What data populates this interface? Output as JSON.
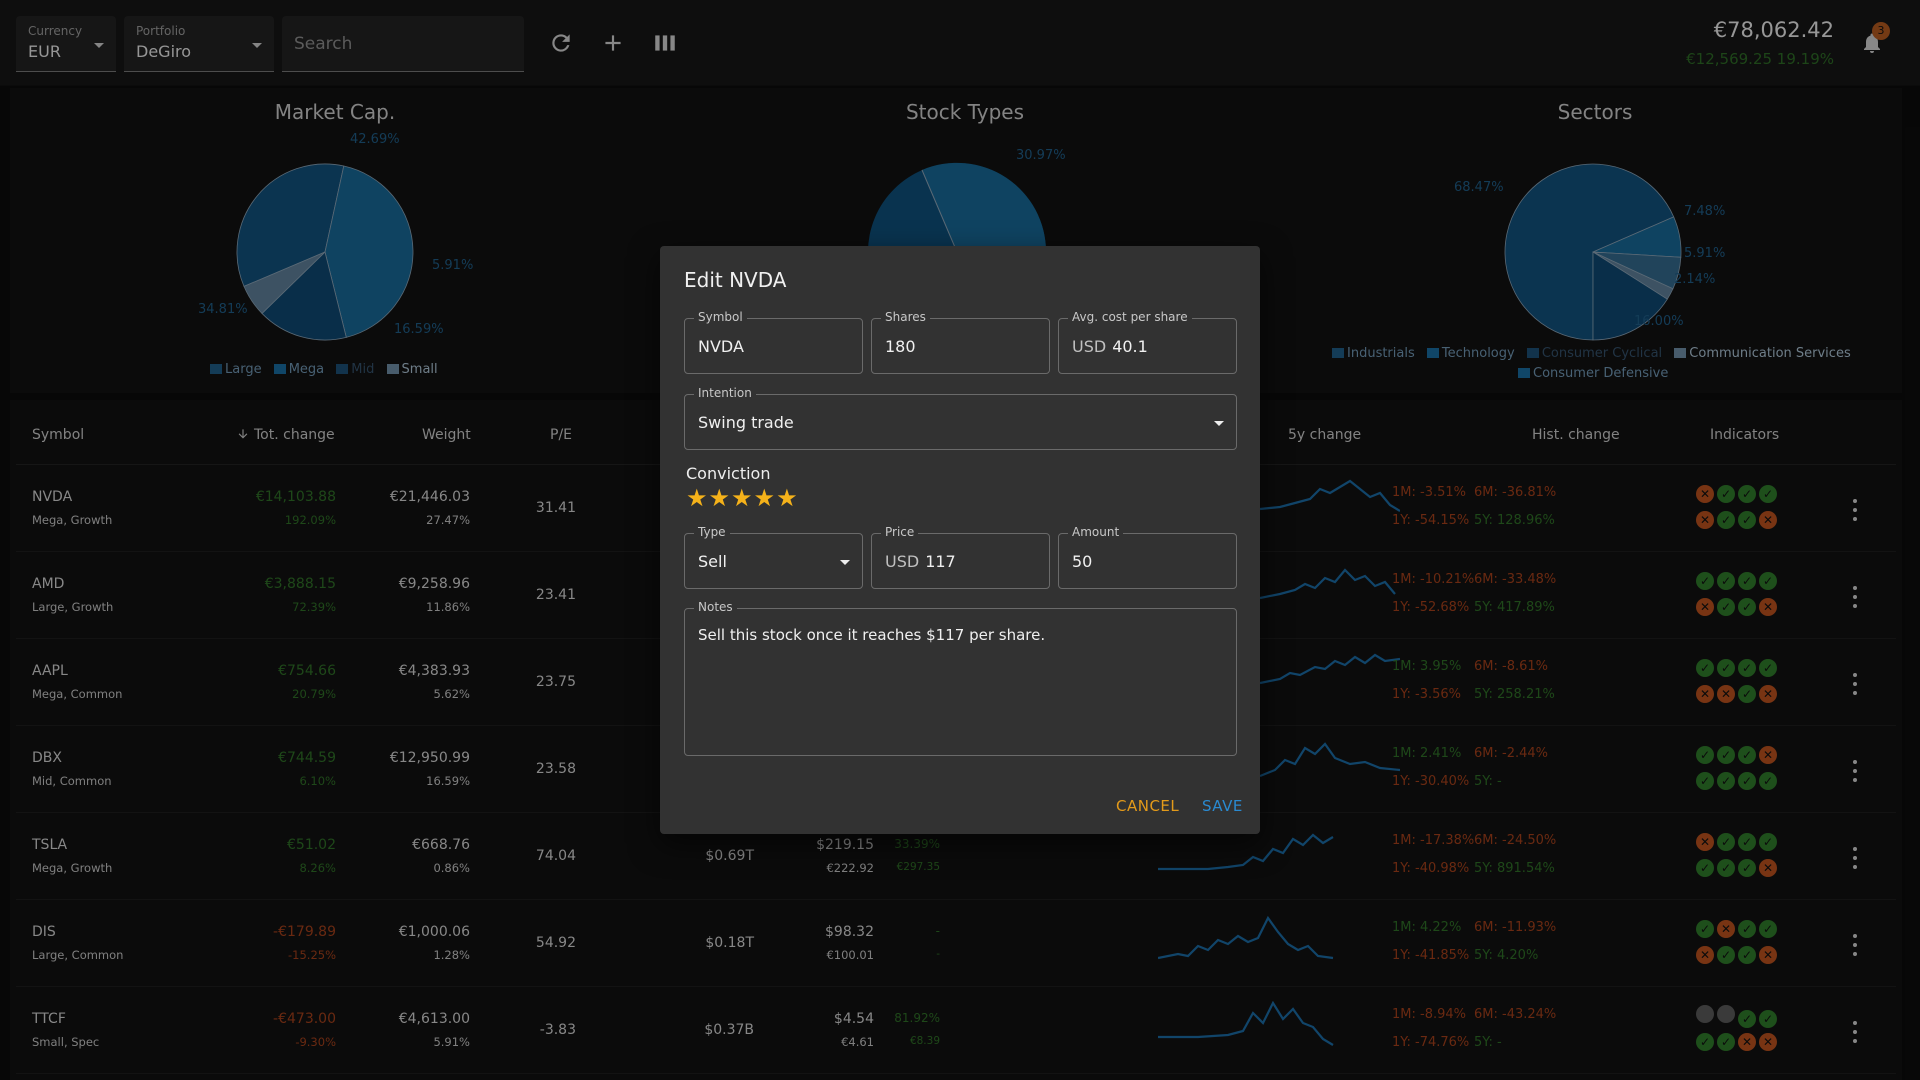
{
  "toolbar": {
    "currency_label": "Currency",
    "currency_value": "EUR",
    "portfolio_label": "Portfolio",
    "portfolio_value": "DeGiro",
    "search_placeholder": "Search",
    "total_value": "€78,062.42",
    "total_change": "€12,569.25 19.19%",
    "notification_count": "3"
  },
  "charts": {
    "market_cap": {
      "title": "Market Cap.",
      "labels": [
        "42.69%",
        "5.91%",
        "16.59%",
        "34.81%"
      ],
      "legend": [
        "Large",
        "Mega",
        "Mid",
        "Small"
      ]
    },
    "stock_types": {
      "title": "Stock Types",
      "labels": [
        "30.97%"
      ]
    },
    "sectors": {
      "title": "Sectors",
      "labels": [
        "68.47%",
        "7.48%",
        "5.91%",
        "2.14%",
        "16.00%"
      ],
      "legend": [
        "Industrials",
        "Technology",
        "Consumer Cyclical",
        "Communication Services",
        "Consumer Defensive"
      ]
    }
  },
  "chart_data": [
    {
      "type": "pie",
      "title": "Market Cap.",
      "categories": [
        "Large",
        "Mega",
        "Mid",
        "Small"
      ],
      "values": [
        34.81,
        42.69,
        16.59,
        5.91
      ]
    },
    {
      "type": "pie",
      "title": "Sectors",
      "categories": [
        "Industrials",
        "Technology",
        "Consumer Cyclical",
        "Communication Services",
        "Consumer Defensive"
      ],
      "values": [
        68.47,
        7.48,
        5.91,
        2.14,
        16.0
      ]
    }
  ],
  "table": {
    "headers": {
      "symbol": "Symbol",
      "tot_change": "Tot. change",
      "weight": "Weight",
      "pe": "P/E",
      "five_y": "5y change",
      "hist": "Hist. change",
      "indicators": "Indicators"
    },
    "rows": [
      {
        "symbol": "NVDA",
        "cat": "Mega, Growth",
        "change": "€14,103.88",
        "change_pct": "192.09%",
        "weight_val": "€21,446.03",
        "weight_pct": "27.47%",
        "pe": "31.41",
        "mcap": "",
        "price": "",
        "price_sub": "",
        "target": "",
        "target_sub": "",
        "h1": "1M: -3.51%",
        "h2": "6M: -36.81%",
        "h3": "1Y: -54.15%",
        "h4": "5Y: 128.96%"
      },
      {
        "symbol": "AMD",
        "cat": "Large, Growth",
        "change": "€3,888.15",
        "change_pct": "72.39%",
        "weight_val": "€9,258.96",
        "weight_pct": "11.86%",
        "pe": "23.41",
        "mcap": "",
        "price": "",
        "price_sub": "",
        "target": "",
        "target_sub": "",
        "h1": "1M: -10.21%",
        "h2": "6M: -33.48%",
        "h3": "1Y: -52.68%",
        "h4": "5Y: 417.89%"
      },
      {
        "symbol": "AAPL",
        "cat": "Mega, Common",
        "change": "€754.66",
        "change_pct": "20.79%",
        "weight_val": "€4,383.93",
        "weight_pct": "5.62%",
        "pe": "23.75",
        "mcap": "",
        "price": "",
        "price_sub": "",
        "target": "",
        "target_sub": "",
        "h1": "1M: 3.95%",
        "h2": "6M: -8.61%",
        "h3": "1Y: -3.56%",
        "h4": "5Y: 258.21%"
      },
      {
        "symbol": "DBX",
        "cat": "Mid, Common",
        "change": "€744.59",
        "change_pct": "6.10%",
        "weight_val": "€12,950.99",
        "weight_pct": "16.59%",
        "pe": "23.58",
        "mcap": "",
        "price": "",
        "price_sub": "",
        "target": "",
        "target_sub": "",
        "h1": "1M: 2.41%",
        "h2": "6M: -2.44%",
        "h3": "1Y: -30.40%",
        "h4": "5Y: -"
      },
      {
        "symbol": "TSLA",
        "cat": "Mega, Growth",
        "change": "€51.02",
        "change_pct": "8.26%",
        "weight_val": "€668.76",
        "weight_pct": "0.86%",
        "pe": "74.04",
        "mcap": "$0.69T",
        "price": "$219.15",
        "price_sub": "€222.92",
        "target": "33.39%",
        "target_sub": "€297.35",
        "h1": "1M: -17.38%",
        "h2": "6M: -24.50%",
        "h3": "1Y: -40.98%",
        "h4": "5Y: 891.54%"
      },
      {
        "symbol": "DIS",
        "cat": "Large, Common",
        "change": "-€179.89",
        "change_pct": "-15.25%",
        "weight_val": "€1,000.06",
        "weight_pct": "1.28%",
        "pe": "54.92",
        "mcap": "$0.18T",
        "price": "$98.32",
        "price_sub": "€100.01",
        "target": "-",
        "target_sub": "-",
        "h1": "1M: 4.22%",
        "h2": "6M: -11.93%",
        "h3": "1Y: -41.85%",
        "h4": "5Y: 4.20%"
      },
      {
        "symbol": "TTCF",
        "cat": "Small, Spec",
        "change": "-€473.00",
        "change_pct": "-9.30%",
        "weight_val": "€4,613.00",
        "weight_pct": "5.91%",
        "pe": "-3.83",
        "mcap": "$0.37B",
        "price": "$4.54",
        "price_sub": "€4.61",
        "target": "81.92%",
        "target_sub": "€8.39",
        "h1": "1M: -8.94%",
        "h2": "6M: -43.24%",
        "h3": "1Y: -74.76%",
        "h4": "5Y: -"
      }
    ]
  },
  "dialog": {
    "title": "Edit NVDA",
    "symbol_label": "Symbol",
    "symbol_value": "NVDA",
    "shares_label": "Shares",
    "shares_value": "180",
    "avg_cost_label": "Avg. cost per share",
    "avg_cost_currency": "USD",
    "avg_cost_value": "40.1",
    "intention_label": "Intention",
    "intention_value": "Swing trade",
    "conviction_label": "Conviction",
    "conviction_rating": 5,
    "type_label": "Type",
    "type_value": "Sell",
    "price_label": "Price",
    "price_currency": "USD",
    "price_value": "117",
    "amount_label": "Amount",
    "amount_value": "50",
    "notes_label": "Notes",
    "notes_value": "Sell this stock once it reaches $117 per share.",
    "cancel_label": "CANCEL",
    "save_label": "SAVE"
  },
  "colors": {
    "accent_orange": "#e39a1a",
    "accent_blue": "#2a8ad0",
    "positive": "#2f6f27",
    "negative": "#a3401b",
    "pie_blue": "#175a85"
  }
}
